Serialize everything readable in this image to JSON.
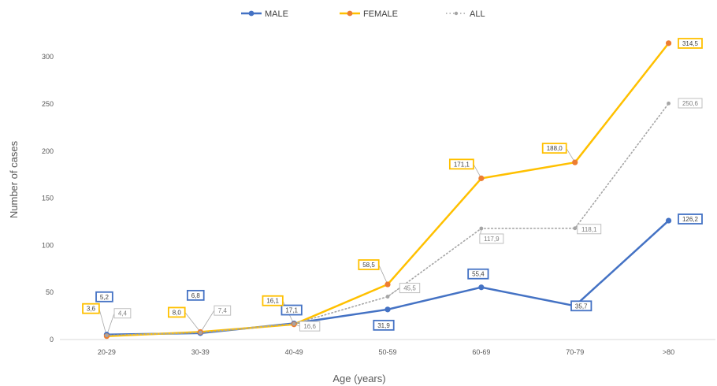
{
  "chart_data": {
    "type": "line",
    "title": "",
    "xlabel": "Age (years)",
    "ylabel": "Number of cases",
    "categories": [
      "20-29",
      "30-39",
      "40-49",
      "50-59",
      "60-69",
      "70-79",
      ">80"
    ],
    "ylim": [
      0,
      325
    ],
    "yticks": [
      0,
      50,
      100,
      150,
      200,
      250,
      300
    ],
    "grid": false,
    "legend_position": "top",
    "series": [
      {
        "name": "MALE",
        "color": "#4472C4",
        "style": "solid",
        "values": [
          5.2,
          6.8,
          17.1,
          31.9,
          55.4,
          35.7,
          126.2
        ],
        "labels": [
          "5,2",
          "6,8",
          "17,1",
          "31,9",
          "55,4",
          "35,7",
          "126,2"
        ]
      },
      {
        "name": "FEMALE",
        "color": "#FFC000",
        "marker_color": "#ED7D31",
        "style": "solid",
        "values": [
          3.6,
          8.0,
          16.1,
          58.5,
          171.1,
          188.0,
          314.5
        ],
        "labels": [
          "3,6",
          "8,0",
          "16,1",
          "58,5",
          "171,1",
          "188,0",
          "314,5"
        ]
      },
      {
        "name": "ALL",
        "color": "#A5A5A5",
        "style": "dotted",
        "values": [
          4.4,
          7.4,
          16.6,
          45.5,
          117.9,
          118.1,
          250.6
        ],
        "labels": [
          "4,4",
          "7,4",
          "16,6",
          "45,5",
          "117,9",
          "118,1",
          "250,6"
        ]
      }
    ]
  }
}
